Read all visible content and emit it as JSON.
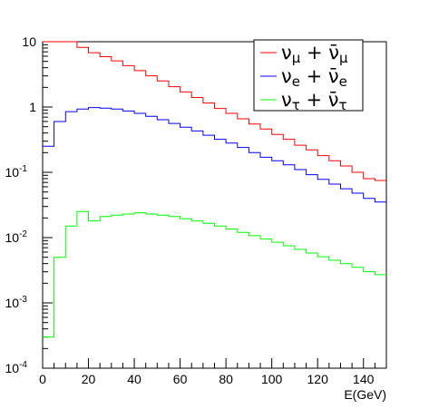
{
  "chart_data": {
    "type": "line",
    "xlabel": "E(GeV)",
    "xlim": [
      0,
      150
    ],
    "ylim": [
      0.0001,
      10
    ],
    "yscale": "log",
    "x_ticks": [
      0,
      20,
      40,
      60,
      80,
      100,
      120,
      140
    ],
    "y_ticks": [
      {
        "value": 0.0001,
        "base": "10",
        "exp": "-4"
      },
      {
        "value": 0.001,
        "base": "10",
        "exp": "-3"
      },
      {
        "value": 0.01,
        "base": "10",
        "exp": "-2"
      },
      {
        "value": 0.1,
        "base": "10",
        "exp": "-1"
      },
      {
        "value": 1,
        "base": "1",
        "exp": ""
      },
      {
        "value": 10,
        "base": "10",
        "exp": ""
      }
    ],
    "grid": false,
    "legend_position": "top-right",
    "bin_edges": [
      0,
      5,
      10,
      15,
      20,
      25,
      30,
      35,
      40,
      45,
      50,
      55,
      60,
      65,
      70,
      75,
      80,
      85,
      90,
      95,
      100,
      105,
      110,
      115,
      120,
      125,
      130,
      135,
      140,
      145,
      150
    ],
    "series": [
      {
        "key": "numu",
        "legend": {
          "nu": "ν",
          "sub": "μ",
          "plus": "+",
          "nubar": "ν̄",
          "sub2": "μ"
        },
        "color": "#ff0000",
        "values": [
          10,
          10,
          10,
          8.2,
          6.8,
          5.9,
          5.1,
          4.3,
          3.6,
          3.0,
          2.5,
          2.05,
          1.7,
          1.4,
          1.15,
          0.95,
          0.8,
          0.66,
          0.55,
          0.46,
          0.38,
          0.32,
          0.26,
          0.22,
          0.18,
          0.15,
          0.125,
          0.1,
          0.08,
          0.075
        ]
      },
      {
        "key": "nue",
        "legend": {
          "nu": "ν",
          "sub": "e",
          "plus": "+",
          "nubar": "ν̄",
          "sub2": "e"
        },
        "color": "#0000ff",
        "values": [
          0.25,
          0.6,
          0.85,
          0.93,
          0.98,
          0.96,
          0.93,
          0.87,
          0.8,
          0.72,
          0.64,
          0.56,
          0.49,
          0.43,
          0.37,
          0.32,
          0.28,
          0.24,
          0.2,
          0.17,
          0.15,
          0.13,
          0.11,
          0.092,
          0.078,
          0.066,
          0.056,
          0.048,
          0.04,
          0.035
        ]
      },
      {
        "key": "nutau",
        "legend": {
          "nu": "ν",
          "sub": "τ",
          "plus": "+",
          "nubar": "ν̄",
          "sub2": "τ"
        },
        "color": "#00ff00",
        "values": [
          0.0003,
          0.005,
          0.015,
          0.025,
          0.018,
          0.021,
          0.022,
          0.023,
          0.024,
          0.023,
          0.022,
          0.021,
          0.0195,
          0.018,
          0.0165,
          0.015,
          0.0135,
          0.012,
          0.0107,
          0.0095,
          0.0085,
          0.0075,
          0.0066,
          0.0058,
          0.0051,
          0.0045,
          0.004,
          0.0035,
          0.003,
          0.0027
        ]
      }
    ]
  }
}
